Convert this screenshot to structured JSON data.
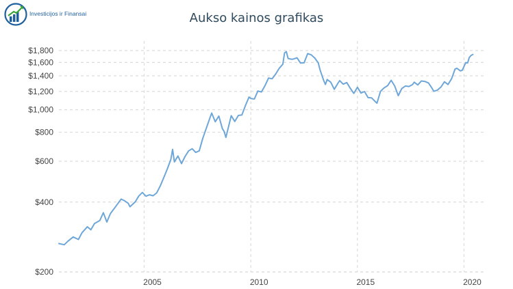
{
  "logo": {
    "text": "Investicijos ir Finansai"
  },
  "colors": {
    "line": "#6fa6d8",
    "grid": "#dcdcdc",
    "title": "#2f4a5c",
    "brand": "#1f5f9e",
    "brand_accent": "#3aa33a"
  },
  "chart_data": {
    "type": "line",
    "title": "Aukso kainos grafikas",
    "xlabel": "",
    "ylabel": "",
    "y_scale": "log",
    "grid": true,
    "xlim": [
      "2001-01",
      "2020-12"
    ],
    "ylim": [
      200,
      1900
    ],
    "y_ticks": [
      200,
      400,
      600,
      800,
      1000,
      1200,
      1400,
      1600,
      1800
    ],
    "y_tick_labels": [
      "$200",
      "$400",
      "$600",
      "$800",
      "$1,000",
      "$1,200",
      "$1,400",
      "$1,600",
      "$1,800"
    ],
    "x_ticks": [
      "2005",
      "2010",
      "2015",
      "2020"
    ],
    "series": [
      {
        "values": [
          [
            "2001-01",
            265
          ],
          [
            "2001-04",
            262
          ],
          [
            "2001-06",
            271
          ],
          [
            "2001-09",
            283
          ],
          [
            "2001-12",
            276
          ],
          [
            "2002-02",
            295
          ],
          [
            "2002-05",
            313
          ],
          [
            "2002-07",
            304
          ],
          [
            "2002-09",
            323
          ],
          [
            "2002-12",
            333
          ],
          [
            "2003-02",
            360
          ],
          [
            "2003-04",
            328
          ],
          [
            "2003-06",
            357
          ],
          [
            "2003-09",
            383
          ],
          [
            "2003-12",
            412
          ],
          [
            "2004-02",
            405
          ],
          [
            "2004-04",
            395
          ],
          [
            "2004-05",
            382
          ],
          [
            "2004-08",
            401
          ],
          [
            "2004-10",
            425
          ],
          [
            "2004-12",
            440
          ],
          [
            "2005-02",
            424
          ],
          [
            "2005-04",
            430
          ],
          [
            "2005-06",
            426
          ],
          [
            "2005-08",
            438
          ],
          [
            "2005-10",
            469
          ],
          [
            "2005-12",
            510
          ],
          [
            "2006-02",
            555
          ],
          [
            "2006-04",
            610
          ],
          [
            "2006-05",
            675
          ],
          [
            "2006-06",
            596
          ],
          [
            "2006-08",
            632
          ],
          [
            "2006-10",
            586
          ],
          [
            "2006-12",
            629
          ],
          [
            "2007-02",
            665
          ],
          [
            "2007-04",
            679
          ],
          [
            "2007-06",
            655
          ],
          [
            "2007-08",
            665
          ],
          [
            "2007-10",
            754
          ],
          [
            "2007-12",
            834
          ],
          [
            "2008-02",
            922
          ],
          [
            "2008-03",
            968
          ],
          [
            "2008-05",
            888
          ],
          [
            "2008-07",
            939
          ],
          [
            "2008-09",
            829
          ],
          [
            "2008-10",
            806
          ],
          [
            "2008-11",
            760
          ],
          [
            "2008-12",
            816
          ],
          [
            "2009-02",
            943
          ],
          [
            "2009-04",
            890
          ],
          [
            "2009-06",
            945
          ],
          [
            "2009-08",
            950
          ],
          [
            "2009-10",
            1043
          ],
          [
            "2009-12",
            1135
          ],
          [
            "2010-01",
            1118
          ],
          [
            "2010-03",
            1113
          ],
          [
            "2010-05",
            1205
          ],
          [
            "2010-07",
            1193
          ],
          [
            "2010-09",
            1270
          ],
          [
            "2010-11",
            1370
          ],
          [
            "2011-01",
            1360
          ],
          [
            "2011-03",
            1425
          ],
          [
            "2011-05",
            1510
          ],
          [
            "2011-07",
            1570
          ],
          [
            "2011-08",
            1760
          ],
          [
            "2011-09",
            1780
          ],
          [
            "2011-10",
            1665
          ],
          [
            "2011-12",
            1650
          ],
          [
            "2012-01",
            1655
          ],
          [
            "2012-03",
            1675
          ],
          [
            "2012-05",
            1590
          ],
          [
            "2012-07",
            1594
          ],
          [
            "2012-09",
            1745
          ],
          [
            "2012-11",
            1725
          ],
          [
            "2013-01",
            1670
          ],
          [
            "2013-03",
            1592
          ],
          [
            "2013-04",
            1485
          ],
          [
            "2013-06",
            1340
          ],
          [
            "2013-07",
            1286
          ],
          [
            "2013-08",
            1350
          ],
          [
            "2013-10",
            1315
          ],
          [
            "2013-12",
            1225
          ],
          [
            "2014-02",
            1300
          ],
          [
            "2014-03",
            1335
          ],
          [
            "2014-05",
            1289
          ],
          [
            "2014-07",
            1310
          ],
          [
            "2014-09",
            1238
          ],
          [
            "2014-11",
            1176
          ],
          [
            "2015-01",
            1250
          ],
          [
            "2015-03",
            1180
          ],
          [
            "2015-05",
            1198
          ],
          [
            "2015-07",
            1128
          ],
          [
            "2015-09",
            1125
          ],
          [
            "2015-11",
            1085
          ],
          [
            "2015-12",
            1068
          ],
          [
            "2016-02",
            1200
          ],
          [
            "2016-04",
            1242
          ],
          [
            "2016-06",
            1270
          ],
          [
            "2016-08",
            1340
          ],
          [
            "2016-10",
            1266
          ],
          [
            "2016-12",
            1150
          ],
          [
            "2017-02",
            1235
          ],
          [
            "2017-04",
            1266
          ],
          [
            "2017-06",
            1260
          ],
          [
            "2017-08",
            1283
          ],
          [
            "2017-09",
            1315
          ],
          [
            "2017-11",
            1280
          ],
          [
            "2018-01",
            1331
          ],
          [
            "2018-03",
            1325
          ],
          [
            "2018-05",
            1305
          ],
          [
            "2018-07",
            1238
          ],
          [
            "2018-08",
            1201
          ],
          [
            "2018-10",
            1215
          ],
          [
            "2018-12",
            1252
          ],
          [
            "2019-02",
            1320
          ],
          [
            "2019-04",
            1285
          ],
          [
            "2019-06",
            1360
          ],
          [
            "2019-08",
            1500
          ],
          [
            "2019-09",
            1510
          ],
          [
            "2019-11",
            1470
          ],
          [
            "2019-12",
            1480
          ],
          [
            "2020-02",
            1597
          ],
          [
            "2020-03",
            1591
          ],
          [
            "2020-04",
            1680
          ],
          [
            "2020-05",
            1715
          ],
          [
            "2020-06",
            1732
          ]
        ]
      }
    ]
  }
}
